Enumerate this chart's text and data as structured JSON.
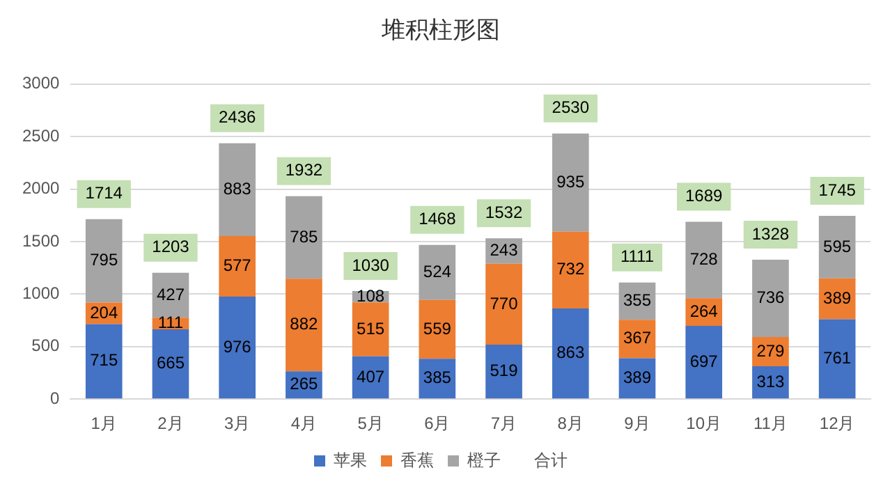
{
  "chart_data": {
    "type": "bar",
    "title": "堆积柱形图",
    "stacked": true,
    "categories": [
      "1月",
      "2月",
      "3月",
      "4月",
      "5月",
      "6月",
      "7月",
      "8月",
      "9月",
      "10月",
      "11月",
      "12月"
    ],
    "series": [
      {
        "name": "苹果",
        "color": "#4472c4",
        "values": [
          715,
          665,
          976,
          265,
          407,
          385,
          519,
          863,
          389,
          697,
          313,
          761
        ]
      },
      {
        "name": "香蕉",
        "color": "#ed7d31",
        "values": [
          204,
          111,
          577,
          882,
          515,
          559,
          770,
          732,
          367,
          264,
          279,
          389
        ]
      },
      {
        "name": "橙子",
        "color": "#a5a5a5",
        "values": [
          795,
          427,
          883,
          785,
          108,
          524,
          243,
          935,
          355,
          728,
          736,
          595
        ]
      }
    ],
    "totals": [
      "1714",
      "1203",
      "2436",
      "1932",
      "1030",
      "1468",
      "1532",
      "2530",
      "1111",
      "1689",
      "1328",
      "1745"
    ],
    "annotations": [
      "合计"
    ],
    "data_labels": true,
    "ylim": [
      0,
      3000
    ],
    "yticks": [
      0,
      500,
      1000,
      1500,
      2000,
      2500,
      3000
    ],
    "grid": "y",
    "legend": "bottom"
  }
}
